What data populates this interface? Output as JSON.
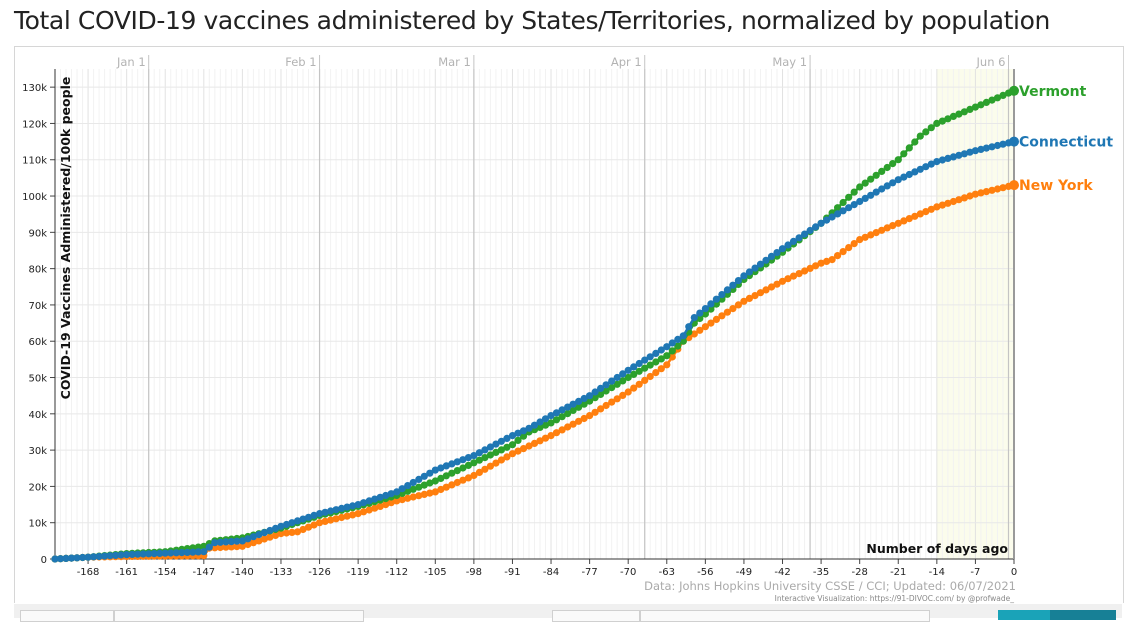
{
  "title": "Total COVID-19 vaccines administered by States/Territories, normalized by population",
  "chart_data": {
    "type": "line",
    "ylabel": "COVID-19 Vaccines Administered/100k people",
    "xlabel": "Number of days ago",
    "xlim": [
      -174,
      0
    ],
    "ylim": [
      0,
      135000
    ],
    "x_ticks": [
      -168,
      -161,
      -154,
      -147,
      -140,
      -133,
      -126,
      -119,
      -112,
      -105,
      -98,
      -91,
      -84,
      -77,
      -70,
      -63,
      -56,
      -49,
      -42,
      -35,
      -28,
      -21,
      -14,
      -7,
      0
    ],
    "y_ticks": [
      0,
      10000,
      20000,
      30000,
      40000,
      50000,
      60000,
      70000,
      80000,
      90000,
      100000,
      110000,
      120000,
      130000
    ],
    "y_tick_labels": [
      "0",
      "10k",
      "20k",
      "30k",
      "40k",
      "50k",
      "60k",
      "70k",
      "80k",
      "90k",
      "100k",
      "110k",
      "120k",
      "130k"
    ],
    "date_markers": [
      {
        "label": "Jan 1",
        "x": -157
      },
      {
        "label": "Feb 1",
        "x": -126
      },
      {
        "label": "Mar 1",
        "x": -98
      },
      {
        "label": "Apr 1",
        "x": -67
      },
      {
        "label": "May 1",
        "x": -37
      },
      {
        "label": "Jun 6",
        "x": -1
      }
    ],
    "highlight_range": [
      -14,
      0
    ],
    "series": [
      {
        "name": "Vermont",
        "color": "#2ca02c",
        "x": [
          -174,
          -168,
          -161,
          -154,
          -147,
          -145,
          -140,
          -133,
          -126,
          -119,
          -112,
          -105,
          -98,
          -91,
          -88,
          -84,
          -77,
          -70,
          -63,
          -60,
          -58,
          -56,
          -49,
          -42,
          -35,
          -28,
          -21,
          -17,
          -14,
          -7,
          0
        ],
        "y": [
          0,
          500,
          1500,
          2000,
          3500,
          5000,
          5800,
          8500,
          12000,
          14500,
          17500,
          21500,
          26500,
          31500,
          35000,
          37500,
          43500,
          50000,
          56000,
          60000,
          65000,
          67500,
          77000,
          84500,
          92500,
          102500,
          110000,
          116500,
          120000,
          124500,
          129000
        ]
      },
      {
        "name": "Connecticut",
        "color": "#1f77b4",
        "x": [
          -174,
          -168,
          -161,
          -154,
          -147,
          -145,
          -140,
          -133,
          -126,
          -119,
          -112,
          -105,
          -98,
          -91,
          -88,
          -84,
          -77,
          -70,
          -63,
          -60,
          -58,
          -56,
          -49,
          -42,
          -35,
          -28,
          -21,
          -14,
          -7,
          0
        ],
        "y": [
          0,
          500,
          1200,
          1600,
          2000,
          4500,
          5000,
          9000,
          12500,
          15000,
          18500,
          24500,
          28500,
          34000,
          36000,
          39500,
          45000,
          52000,
          58500,
          61500,
          66500,
          69000,
          78000,
          85500,
          92500,
          98500,
          104500,
          109500,
          112500,
          115000
        ]
      },
      {
        "name": "New York",
        "color": "#ff7f0e",
        "x": [
          -174,
          -168,
          -161,
          -154,
          -147,
          -146,
          -140,
          -133,
          -130,
          -126,
          -119,
          -112,
          -105,
          -98,
          -91,
          -84,
          -77,
          -70,
          -63,
          -60,
          -56,
          -49,
          -42,
          -35,
          -33,
          -28,
          -21,
          -14,
          -7,
          0
        ],
        "y": [
          0,
          500,
          700,
          800,
          900,
          3000,
          3500,
          7000,
          7500,
          10000,
          12500,
          16000,
          18500,
          23000,
          29000,
          34000,
          39500,
          46000,
          53500,
          60000,
          64000,
          71000,
          76500,
          81500,
          82500,
          88000,
          92500,
          97000,
          100500,
          103000
        ]
      }
    ]
  },
  "source_text": "Data: Johns Hopkins University CSSE / CCI; Updated: 06/07/2021",
  "credit_text": "Interactive Visualization: https://91-DIVOC.com/ by @profwade_"
}
